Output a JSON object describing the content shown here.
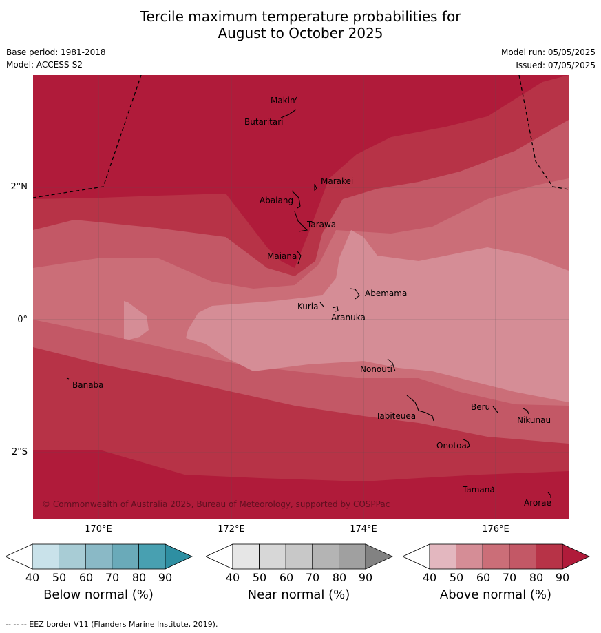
{
  "header": {
    "title_line1": "Tercile maximum temperature probabilities for",
    "title_line2": "August to October 2025",
    "base_period": "Base period: 1981-2018",
    "model": "Model: ACCESS-S2",
    "model_run": "Model run: 05/05/2025",
    "issued": "Issued: 07/05/2025"
  },
  "map": {
    "lat_labels": [
      "2°N",
      "0°",
      "2°S"
    ],
    "lon_labels": [
      "170°E",
      "172°E",
      "174°E",
      "176°E"
    ],
    "places": [
      {
        "name": "Makin"
      },
      {
        "name": "Butaritari"
      },
      {
        "name": "Marakei"
      },
      {
        "name": "Abaiang"
      },
      {
        "name": "Tarawa"
      },
      {
        "name": "Maiana"
      },
      {
        "name": "Abemama"
      },
      {
        "name": "Kuria"
      },
      {
        "name": "Aranuka"
      },
      {
        "name": "Nonouti"
      },
      {
        "name": "Banaba"
      },
      {
        "name": "Beru"
      },
      {
        "name": "Tabiteuea"
      },
      {
        "name": "Nikunau"
      },
      {
        "name": "Onotoa"
      },
      {
        "name": "Tamana"
      },
      {
        "name": "Arorae"
      }
    ],
    "copyright": "© Commonwealth of Australia 2025, Bureau of Meteorology, supported by COSPPac"
  },
  "colorbars": [
    {
      "title": "Below normal (%)",
      "ticks": [
        "40",
        "50",
        "60",
        "70",
        "80",
        "90"
      ],
      "colors": [
        "#ffffff",
        "#c9e2ea",
        "#a8ccd5",
        "#8ab9c6",
        "#6aaab9",
        "#48a0b1",
        "#2e8fa2"
      ]
    },
    {
      "title": "Near normal (%)",
      "ticks": [
        "40",
        "50",
        "60",
        "70",
        "80",
        "90"
      ],
      "colors": [
        "#ffffff",
        "#e6e6e6",
        "#d7d7d7",
        "#c8c8c8",
        "#b4b4b4",
        "#a0a0a0",
        "#828282"
      ]
    },
    {
      "title": "Above normal (%)",
      "ticks": [
        "40",
        "50",
        "60",
        "70",
        "80",
        "90"
      ],
      "colors": [
        "#ffffff",
        "#e3b7bf",
        "#d58d96",
        "#cb6e78",
        "#c35866",
        "#b73347",
        "#b01b3a"
      ]
    }
  ],
  "footer": "--  --  -- EEZ border V11 (Flanders Marine Institute, 2019)."
}
